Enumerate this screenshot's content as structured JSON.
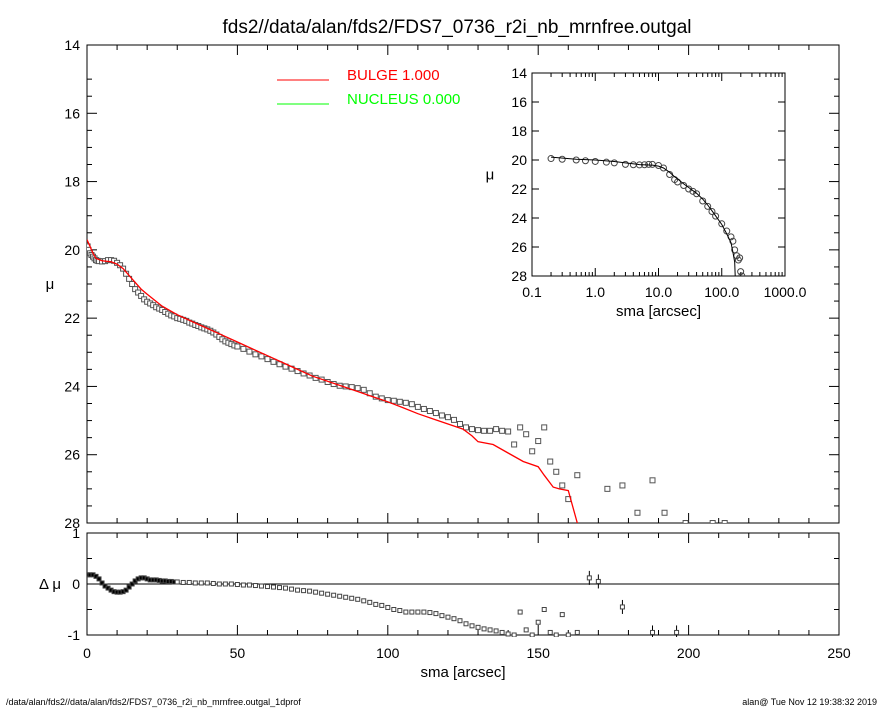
{
  "title": "fds2//data/alan/fds2/FDS7_0736_r2i_nb_mrnfree.outgal",
  "footer": {
    "left": "/data/alan/fds2//data/alan/fds2/FDS7_0736_r2i_nb_mrnfree.outgal_1dprof",
    "right": "alan@  Tue Nov 12 19:38:32 2019"
  },
  "legend": [
    {
      "label": "BULGE  1.000",
      "color": "#ff0000"
    },
    {
      "label": "NUCLEUS  0.000",
      "color": "#00ff00"
    }
  ],
  "chart_data": [
    {
      "type": "scatter",
      "panel": "main",
      "xlabel": "sma [arcsec]",
      "ylabel": "μ",
      "xlim": [
        0,
        250
      ],
      "ylim": [
        28,
        14
      ],
      "xticks": [
        "0",
        "50",
        "100",
        "150",
        "200",
        "250"
      ],
      "yticks": [
        "14",
        "16",
        "18",
        "20",
        "22",
        "24",
        "26",
        "28"
      ],
      "series": [
        {
          "name": "data",
          "marker": "square",
          "x": [
            0.2,
            0.5,
            1,
            1.5,
            2,
            2.5,
            3,
            3.5,
            4,
            5,
            6,
            7,
            8,
            9,
            10,
            11,
            12,
            13,
            14,
            15,
            16,
            17,
            18,
            19,
            20,
            21,
            22,
            23,
            24,
            25,
            26,
            27,
            28,
            29,
            30,
            31,
            32,
            33,
            34,
            35,
            36,
            37,
            38,
            39,
            40,
            41,
            42,
            43,
            44,
            45,
            46,
            47,
            48,
            49,
            50,
            52,
            54,
            56,
            58,
            60,
            62,
            64,
            66,
            68,
            70,
            72,
            74,
            76,
            78,
            80,
            82,
            84,
            86,
            88,
            90,
            92,
            94,
            96,
            98,
            100,
            102,
            104,
            106,
            108,
            110,
            112,
            114,
            116,
            118,
            120,
            122,
            124,
            126,
            128,
            130,
            132,
            134,
            136,
            138,
            140,
            142,
            144,
            146,
            148,
            150,
            152,
            154,
            156,
            158,
            160,
            163,
            173,
            178,
            183,
            188,
            192,
            199,
            208,
            212
          ],
          "y": [
            19.9,
            20.0,
            20.1,
            20.15,
            20.2,
            20.25,
            20.3,
            20.32,
            20.33,
            20.34,
            20.33,
            20.3,
            20.3,
            20.32,
            20.38,
            20.45,
            20.55,
            20.7,
            20.85,
            21.0,
            21.15,
            21.25,
            21.35,
            21.45,
            21.52,
            21.57,
            21.62,
            21.68,
            21.72,
            21.76,
            21.82,
            21.87,
            21.92,
            21.95,
            22.0,
            22.02,
            22.05,
            22.08,
            22.13,
            22.16,
            22.2,
            22.23,
            22.27,
            22.3,
            22.33,
            22.37,
            22.42,
            22.48,
            22.55,
            22.62,
            22.68,
            22.72,
            22.76,
            22.8,
            22.83,
            22.9,
            22.98,
            23.06,
            23.12,
            23.2,
            23.28,
            23.35,
            23.42,
            23.48,
            23.55,
            23.62,
            23.68,
            23.75,
            23.8,
            23.87,
            23.93,
            23.98,
            24.0,
            24.02,
            24.05,
            24.1,
            24.2,
            24.3,
            24.35,
            24.4,
            24.42,
            24.45,
            24.48,
            24.52,
            24.6,
            24.66,
            24.72,
            24.78,
            24.85,
            24.9,
            24.98,
            25.1,
            25.2,
            25.25,
            25.28,
            25.3,
            25.3,
            25.25,
            25.3,
            25.32,
            25.7,
            25.2,
            25.4,
            25.9,
            25.6,
            25.2,
            26.2,
            26.5,
            26.9,
            27.3,
            26.6,
            27.0,
            26.9,
            27.7,
            26.75,
            27.7,
            28.0,
            28.0,
            28.0
          ]
        },
        {
          "name": "BULGE  1.000",
          "color": "#ff0000",
          "x": [
            0,
            1,
            2,
            3,
            5,
            8,
            10,
            12,
            15,
            18,
            20,
            25,
            30,
            35,
            40,
            45,
            50,
            55,
            60,
            65,
            70,
            75,
            80,
            85,
            90,
            95,
            100,
            105,
            110,
            115,
            120,
            125,
            128,
            130,
            135,
            140,
            145,
            150,
            152,
            155,
            157,
            160,
            163
          ],
          "y": [
            19.7,
            19.9,
            20.1,
            20.25,
            20.32,
            20.35,
            20.42,
            20.55,
            20.85,
            21.15,
            21.3,
            21.65,
            21.9,
            22.1,
            22.3,
            22.5,
            22.7,
            22.9,
            23.1,
            23.3,
            23.5,
            23.7,
            23.85,
            24.0,
            24.15,
            24.3,
            24.45,
            24.62,
            24.8,
            24.95,
            25.1,
            25.25,
            25.45,
            25.62,
            25.7,
            25.95,
            26.2,
            26.35,
            26.6,
            26.95,
            27.0,
            27.05,
            28.0
          ]
        },
        {
          "name": "NUCLEUS  0.000",
          "color": "#00ff00",
          "x": [],
          "y": []
        }
      ]
    },
    {
      "type": "scatter",
      "panel": "inset",
      "xscale": "log",
      "xlabel": "sma [arcsec]",
      "ylabel": "μ",
      "xlim": [
        0.1,
        1000
      ],
      "ylim": [
        28,
        14
      ],
      "xticks": [
        "0.1",
        "1.0",
        "10.0",
        "100.0",
        "1000.0"
      ],
      "yticks": [
        "14",
        "16",
        "18",
        "20",
        "22",
        "24",
        "26",
        "28"
      ],
      "series": [
        {
          "name": "data",
          "marker": "circle",
          "x": [
            0.2,
            0.3,
            0.5,
            0.7,
            1,
            1.5,
            2,
            3,
            4,
            5,
            6,
            7,
            8,
            10,
            12,
            15,
            18,
            20,
            25,
            30,
            35,
            40,
            50,
            60,
            70,
            80,
            100,
            120,
            140,
            150,
            160,
            173,
            183,
            192,
            199,
            208
          ],
          "y": [
            19.9,
            19.95,
            20.0,
            20.05,
            20.1,
            20.15,
            20.2,
            20.3,
            20.33,
            20.34,
            20.33,
            20.3,
            20.3,
            20.38,
            20.55,
            21.0,
            21.35,
            21.52,
            21.76,
            22.0,
            22.16,
            22.33,
            22.83,
            23.2,
            23.55,
            23.87,
            24.4,
            24.9,
            25.3,
            25.6,
            26.2,
            26.6,
            26.9,
            26.75,
            27.7,
            28.0
          ]
        },
        {
          "name": "model",
          "color": "#000000",
          "x": [
            0.2,
            0.5,
            1,
            2,
            3,
            5,
            8,
            10,
            12,
            15,
            18,
            20,
            25,
            30,
            40,
            50,
            60,
            70,
            80,
            100,
            120,
            140,
            150,
            160,
            163
          ],
          "y": [
            19.8,
            19.95,
            20.0,
            20.1,
            20.2,
            20.32,
            20.35,
            20.42,
            20.55,
            20.85,
            21.15,
            21.3,
            21.65,
            21.9,
            22.3,
            22.7,
            23.1,
            23.5,
            23.85,
            24.45,
            25.1,
            25.7,
            26.35,
            27.05,
            28.0
          ]
        }
      ]
    },
    {
      "type": "scatter",
      "panel": "residual",
      "ylabel": "Δ μ",
      "xlim": [
        0,
        250
      ],
      "ylim": [
        -1,
        1
      ],
      "yticks": [
        "1",
        "0",
        "-1"
      ],
      "series": [
        {
          "name": "residual",
          "marker": "square",
          "x": [
            0.2,
            1,
            2,
            3,
            4,
            5,
            6,
            7,
            8,
            9,
            10,
            11,
            12,
            13,
            14,
            15,
            16,
            17,
            18,
            19,
            20,
            21,
            22,
            23,
            24,
            25,
            26,
            27,
            28,
            29,
            30,
            32,
            34,
            36,
            38,
            40,
            42,
            44,
            46,
            48,
            50,
            52,
            54,
            56,
            58,
            60,
            62,
            64,
            66,
            68,
            70,
            72,
            74,
            76,
            78,
            80,
            82,
            84,
            86,
            88,
            90,
            92,
            94,
            96,
            98,
            100,
            102,
            104,
            106,
            108,
            110,
            112,
            114,
            116,
            118,
            120,
            122,
            124,
            126,
            128,
            130,
            132,
            134,
            136,
            138,
            140,
            142,
            144,
            146,
            148,
            150,
            152,
            154,
            156,
            158,
            160,
            163,
            167,
            170,
            178,
            188,
            196
          ],
          "y": [
            0.18,
            0.18,
            0.18,
            0.15,
            0.1,
            0.02,
            -0.04,
            -0.08,
            -0.12,
            -0.15,
            -0.16,
            -0.16,
            -0.15,
            -0.12,
            -0.06,
            0.0,
            0.06,
            0.1,
            0.12,
            0.12,
            0.1,
            0.08,
            0.08,
            0.08,
            0.07,
            0.06,
            0.06,
            0.05,
            0.05,
            0.04,
            0.04,
            0.03,
            0.03,
            0.02,
            0.02,
            0.02,
            0.01,
            0.0,
            0.0,
            0.0,
            -0.01,
            -0.02,
            -0.02,
            -0.03,
            -0.04,
            -0.05,
            -0.06,
            -0.07,
            -0.08,
            -0.1,
            -0.12,
            -0.13,
            -0.14,
            -0.16,
            -0.18,
            -0.2,
            -0.22,
            -0.24,
            -0.26,
            -0.28,
            -0.3,
            -0.33,
            -0.36,
            -0.4,
            -0.42,
            -0.46,
            -0.5,
            -0.52,
            -0.55,
            -0.55,
            -0.55,
            -0.55,
            -0.56,
            -0.58,
            -0.62,
            -0.65,
            -0.68,
            -0.72,
            -0.78,
            -0.82,
            -0.85,
            -0.88,
            -0.9,
            -0.92,
            -0.95,
            -0.98,
            -1.0,
            -0.55,
            -0.9,
            -1.0,
            -0.75,
            -0.5,
            -0.95,
            -1.0,
            -0.6,
            -1.0,
            -0.95,
            0.12,
            0.05,
            -0.45,
            -0.95,
            -0.95
          ]
        }
      ]
    }
  ]
}
